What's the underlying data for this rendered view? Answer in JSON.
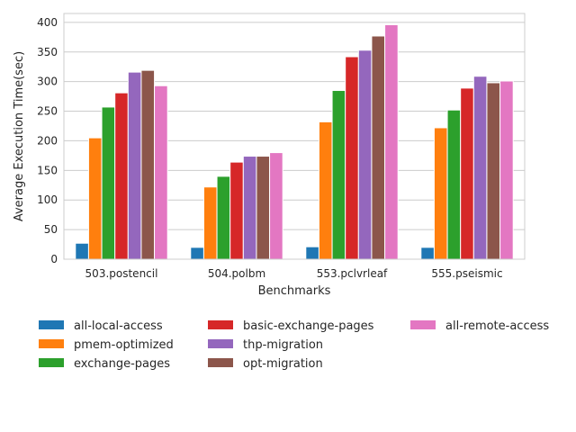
{
  "chart_data": {
    "type": "bar",
    "xlabel": "Benchmarks",
    "ylabel": "Average Execution Time(sec)",
    "ylim": [
      0,
      415
    ],
    "yticks": [
      0,
      50,
      100,
      150,
      200,
      250,
      300,
      350,
      400
    ],
    "grid": "horizontal",
    "legend_placement": "bottom",
    "categories": [
      "503.postencil",
      "504.polbm",
      "553.pclvrleaf",
      "555.pseismic"
    ],
    "series": [
      {
        "name": "all-local-access",
        "color": "#1f77b4",
        "values": [
          27,
          20,
          21,
          20
        ]
      },
      {
        "name": "pmem-optimized",
        "color": "#ff7f0e",
        "values": [
          205,
          122,
          232,
          222
        ]
      },
      {
        "name": "exchange-pages",
        "color": "#2ca02c",
        "values": [
          257,
          140,
          285,
          252
        ]
      },
      {
        "name": "basic-exchange-pages",
        "color": "#d62728",
        "values": [
          281,
          164,
          342,
          289
        ]
      },
      {
        "name": "thp-migration",
        "color": "#9467bd",
        "values": [
          316,
          174,
          353,
          309
        ]
      },
      {
        "name": "opt-migration",
        "color": "#8c564b",
        "values": [
          319,
          174,
          377,
          298
        ]
      },
      {
        "name": "all-remote-access",
        "color": "#e377c2",
        "values": [
          293,
          180,
          396,
          301
        ]
      }
    ]
  }
}
